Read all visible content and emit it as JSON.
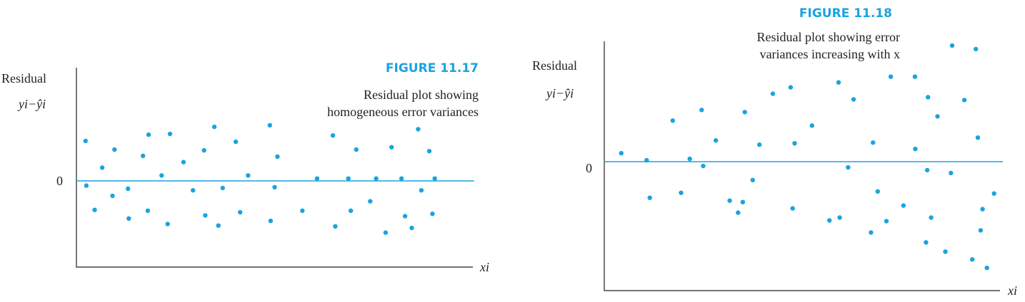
{
  "chart_data": [
    {
      "type": "scatter",
      "figure_label": "FIGURE 11.17",
      "caption_lines": [
        "Residual plot showing",
        "homogeneous error variances"
      ],
      "ylabel": "Residual",
      "ylabel_formula": "yi−ŷi",
      "xlabel": "xi",
      "zero_label": "0",
      "xlim": [
        0,
        100
      ],
      "ylim": [
        -11,
        13
      ],
      "series": [
        {
          "color": "#1aa3e0",
          "points": [
            [
              2.3,
              5.1
            ],
            [
              2.5,
              -0.6
            ],
            [
              4.6,
              -3.7
            ],
            [
              6.5,
              1.7
            ],
            [
              9.1,
              -1.9
            ],
            [
              9.6,
              4.0
            ],
            [
              13.0,
              -1.0
            ],
            [
              13.2,
              -4.8
            ],
            [
              16.8,
              3.2
            ],
            [
              18.0,
              -3.8
            ],
            [
              18.2,
              5.9
            ],
            [
              21.5,
              0.7
            ],
            [
              23.0,
              -5.5
            ],
            [
              23.6,
              6.0
            ],
            [
              27.0,
              2.4
            ],
            [
              29.4,
              -1.2
            ],
            [
              32.2,
              3.9
            ],
            [
              32.5,
              -4.4
            ],
            [
              34.8,
              6.9
            ],
            [
              35.8,
              -5.7
            ],
            [
              36.9,
              -0.9
            ],
            [
              40.2,
              5.0
            ],
            [
              41.3,
              -4.0
            ],
            [
              43.3,
              0.7
            ],
            [
              48.8,
              7.1
            ],
            [
              49.0,
              -5.1
            ],
            [
              50.0,
              -0.8
            ],
            [
              50.7,
              3.1
            ],
            [
              57.0,
              -3.8
            ],
            [
              60.7,
              0.3
            ],
            [
              64.7,
              5.8
            ],
            [
              65.3,
              -5.8
            ],
            [
              68.6,
              0.3
            ],
            [
              69.2,
              -3.8
            ],
            [
              70.6,
              4.0
            ],
            [
              74.1,
              -2.6
            ],
            [
              75.6,
              0.3
            ],
            [
              78.0,
              -6.6
            ],
            [
              79.5,
              4.3
            ],
            [
              82.0,
              0.3
            ],
            [
              82.9,
              -4.5
            ],
            [
              84.6,
              -6.0
            ],
            [
              86.2,
              6.6
            ],
            [
              87.0,
              -1.2
            ],
            [
              89.0,
              3.8
            ],
            [
              89.8,
              -4.2
            ],
            [
              90.4,
              0.3
            ]
          ]
        }
      ]
    },
    {
      "type": "scatter",
      "figure_label": "FIGURE 11.18",
      "caption_lines": [
        "Residual plot showing error",
        "variances increasing with x"
      ],
      "ylabel": "Residual",
      "ylabel_formula": "yi−ŷi",
      "xlabel": "xi",
      "zero_label": "0",
      "xlim": [
        0,
        100
      ],
      "ylim": [
        -18,
        17
      ],
      "series": [
        {
          "color": "#1aa3e0",
          "points": [
            [
              4.3,
              1.2
            ],
            [
              10.7,
              0.2
            ],
            [
              11.5,
              -5.1
            ],
            [
              17.3,
              5.8
            ],
            [
              19.4,
              -4.4
            ],
            [
              21.6,
              0.4
            ],
            [
              24.6,
              7.3
            ],
            [
              25.0,
              -0.6
            ],
            [
              28.2,
              3.0
            ],
            [
              31.7,
              -5.5
            ],
            [
              33.8,
              -7.2
            ],
            [
              35.0,
              -5.7
            ],
            [
              35.5,
              7.0
            ],
            [
              37.5,
              -2.6
            ],
            [
              39.2,
              2.4
            ],
            [
              42.6,
              9.6
            ],
            [
              47.1,
              10.5
            ],
            [
              47.6,
              -6.6
            ],
            [
              48.1,
              2.6
            ],
            [
              52.5,
              5.1
            ],
            [
              56.9,
              -8.3
            ],
            [
              59.2,
              11.2
            ],
            [
              59.5,
              -7.9
            ],
            [
              61.6,
              -0.8
            ],
            [
              63.0,
              8.8
            ],
            [
              67.4,
              -10.0
            ],
            [
              67.9,
              2.7
            ],
            [
              69.1,
              -4.2
            ],
            [
              71.3,
              -8.4
            ],
            [
              72.4,
              12.0
            ],
            [
              75.6,
              -6.2
            ],
            [
              78.5,
              12.0
            ],
            [
              78.6,
              1.8
            ],
            [
              81.3,
              -11.4
            ],
            [
              81.6,
              -1.2
            ],
            [
              81.8,
              9.1
            ],
            [
              82.6,
              -7.9
            ],
            [
              84.2,
              6.4
            ],
            [
              86.2,
              -12.7
            ],
            [
              87.9,
              16.4
            ],
            [
              87.6,
              -1.6
            ],
            [
              91.0,
              8.7
            ],
            [
              93.0,
              -13.8
            ],
            [
              94.4,
              3.4
            ],
            [
              93.9,
              15.9
            ],
            [
              95.1,
              -9.7
            ],
            [
              95.6,
              -6.7
            ],
            [
              96.7,
              -15.0
            ],
            [
              98.5,
              -4.5
            ]
          ]
        }
      ]
    }
  ]
}
